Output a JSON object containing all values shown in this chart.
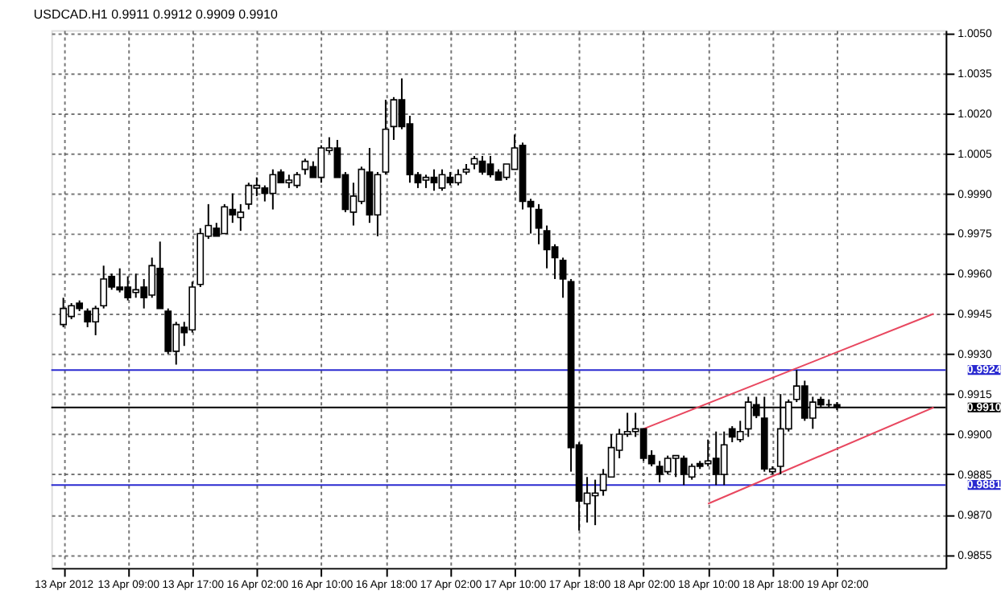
{
  "chart_data": {
    "type": "candlestick",
    "title": "USDCAD.H1 0.9911 0.9912 0.9909 0.9910",
    "categories": [
      "13 Apr 2012",
      null,
      null,
      null,
      null,
      null,
      null,
      null,
      "13 Apr 09:00",
      null,
      null,
      null,
      null,
      null,
      null,
      null,
      "13 Apr 17:00",
      null,
      null,
      null,
      null,
      null,
      null,
      null,
      "16 Apr 02:00",
      null,
      null,
      null,
      null,
      null,
      null,
      null,
      "16 Apr 10:00",
      null,
      null,
      null,
      null,
      null,
      null,
      null,
      "16 Apr 18:00",
      null,
      null,
      null,
      null,
      null,
      null,
      null,
      "17 Apr 02:00",
      null,
      null,
      null,
      null,
      null,
      null,
      null,
      "17 Apr 10:00",
      null,
      null,
      null,
      null,
      null,
      null,
      null,
      "17 Apr 18:00",
      null,
      null,
      null,
      null,
      null,
      null,
      null,
      "18 Apr 02:00",
      null,
      null,
      null,
      null,
      null,
      null,
      null,
      "18 Apr 10:00",
      null,
      null,
      null,
      null,
      null,
      null,
      null,
      "18 Apr 18:00",
      null,
      null,
      null,
      null,
      null,
      null,
      null,
      "19 Apr 02:00",
      null,
      null,
      null,
      null,
      null,
      null,
      null,
      null,
      null,
      null,
      null,
      null
    ],
    "ohlc": [
      [
        0.9941,
        0.9951,
        0.994,
        0.9947
      ],
      [
        0.9944,
        0.9949,
        0.9943,
        0.9948
      ],
      [
        0.9949,
        0.995,
        0.9946,
        0.9947
      ],
      [
        0.9946,
        0.9947,
        0.994,
        0.9942
      ],
      [
        0.9942,
        0.9948,
        0.9937,
        0.9947
      ],
      [
        0.9948,
        0.9963,
        0.9947,
        0.9958
      ],
      [
        0.9959,
        0.996,
        0.9954,
        0.9955
      ],
      [
        0.9955,
        0.9962,
        0.9953,
        0.9954
      ],
      [
        0.9955,
        0.9959,
        0.995,
        0.9951
      ],
      [
        0.9953,
        0.996,
        0.9951,
        0.9954
      ],
      [
        0.9955,
        0.9958,
        0.9947,
        0.9951
      ],
      [
        0.9952,
        0.9966,
        0.9951,
        0.9963
      ],
      [
        0.9962,
        0.9972,
        0.9947,
        0.9947
      ],
      [
        0.9946,
        0.9947,
        0.993,
        0.9931
      ],
      [
        0.9931,
        0.9942,
        0.9926,
        0.9941
      ],
      [
        0.994,
        0.9942,
        0.9933,
        0.9938
      ],
      [
        0.9939,
        0.9957,
        0.9938,
        0.9955
      ],
      [
        0.9956,
        0.9977,
        0.9955,
        0.9975
      ],
      [
        0.9974,
        0.9986,
        0.9973,
        0.9978
      ],
      [
        0.9977,
        0.9979,
        0.9974,
        0.9974
      ],
      [
        0.9975,
        0.9986,
        0.9975,
        0.9985
      ],
      [
        0.9984,
        0.999,
        0.9979,
        0.9982
      ],
      [
        0.9981,
        0.9986,
        0.9976,
        0.9983
      ],
      [
        0.9986,
        0.9994,
        0.9984,
        0.9993
      ],
      [
        0.9992,
        0.9996,
        0.9989,
        0.9993
      ],
      [
        0.9992,
        0.9993,
        0.9987,
        0.999
      ],
      [
        0.999,
        0.9999,
        0.9984,
        0.9997
      ],
      [
        0.9998,
        0.9999,
        0.9994,
        0.9994
      ],
      [
        0.9994,
        0.9997,
        0.9992,
        0.9995
      ],
      [
        0.9993,
        0.9998,
        0.9992,
        0.9997
      ],
      [
        0.9999,
        1.0003,
        0.9997,
        1.0002
      ],
      [
        1.0,
        1.0002,
        0.9996,
        0.9996
      ],
      [
        0.9996,
        1.0008,
        0.9994,
        1.0007
      ],
      [
        1.0006,
        1.0011,
        1.0005,
        1.0007
      ],
      [
        1.0007,
        1.001,
        0.9996,
        0.9996
      ],
      [
        0.9997,
        0.9998,
        0.9983,
        0.9984
      ],
      [
        0.9983,
        0.9994,
        0.9978,
        0.9989
      ],
      [
        0.9987,
        1.0,
        0.9986,
        0.9999
      ],
      [
        0.9998,
        1.0007,
        0.9979,
        0.9982
      ],
      [
        0.9982,
        0.9998,
        0.9974,
        0.9997
      ],
      [
        0.9998,
        1.0025,
        0.9997,
        1.0014
      ],
      [
        1.0015,
        1.0026,
        1.001,
        1.0025
      ],
      [
        1.0025,
        1.0033,
        1.0014,
        1.0015
      ],
      [
        1.0016,
        1.0019,
        0.9994,
        0.9997
      ],
      [
        0.9997,
        0.9998,
        0.9992,
        0.9994
      ],
      [
        0.9995,
        0.9997,
        0.9992,
        0.9996
      ],
      [
        0.9996,
        0.9999,
        0.9991,
        0.9994
      ],
      [
        0.9992,
        0.9999,
        0.9991,
        0.9997
      ],
      [
        0.9996,
        0.9998,
        0.9993,
        0.9994
      ],
      [
        0.9994,
        0.9999,
        0.9993,
        0.9997
      ],
      [
        0.9998,
        1.0001,
        0.9997,
        0.9999
      ],
      [
        1.0001,
        1.0004,
        0.9999,
        1.0003
      ],
      [
        1.0002,
        1.0004,
        0.9997,
        0.9998
      ],
      [
        1.0001,
        1.0004,
        0.9996,
        0.9997
      ],
      [
        0.9998,
        0.9999,
        0.9995,
        0.9995
      ],
      [
        0.9996,
        1.0001,
        0.9995,
        1.0001
      ],
      [
        0.9999,
        1.0012,
        0.9999,
        1.0007
      ],
      [
        1.0008,
        1.0009,
        0.9984,
        0.9987
      ],
      [
        0.9987,
        0.9988,
        0.9975,
        0.9985
      ],
      [
        0.9984,
        0.9986,
        0.9971,
        0.9977
      ],
      [
        0.9976,
        0.9978,
        0.9962,
        0.9969
      ],
      [
        0.997,
        0.9971,
        0.9958,
        0.9966
      ],
      [
        0.9965,
        0.9966,
        0.9951,
        0.9958
      ],
      [
        0.9957,
        0.9958,
        0.9886,
        0.9895
      ],
      [
        0.9896,
        0.9897,
        0.9864,
        0.9875
      ],
      [
        0.9874,
        0.9884,
        0.9867,
        0.9878
      ],
      [
        0.9877,
        0.9883,
        0.9866,
        0.9878
      ],
      [
        0.9879,
        0.9887,
        0.9877,
        0.9885
      ],
      [
        0.9884,
        0.99,
        0.9884,
        0.9895
      ],
      [
        0.9894,
        0.9902,
        0.9891,
        0.99
      ],
      [
        0.99,
        0.9908,
        0.9899,
        0.9901
      ],
      [
        0.9901,
        0.9908,
        0.9899,
        0.9902
      ],
      [
        0.9902,
        0.9902,
        0.989,
        0.9891
      ],
      [
        0.9892,
        0.9894,
        0.9888,
        0.9889
      ],
      [
        0.9888,
        0.989,
        0.9882,
        0.9885
      ],
      [
        0.9886,
        0.9892,
        0.9885,
        0.9891
      ],
      [
        0.9891,
        0.9892,
        0.9884,
        0.9892
      ],
      [
        0.9891,
        0.9892,
        0.9881,
        0.9885
      ],
      [
        0.9884,
        0.9889,
        0.9883,
        0.9888
      ],
      [
        0.9889,
        0.989,
        0.9887,
        0.9888
      ],
      [
        0.9889,
        0.9898,
        0.9888,
        0.989
      ],
      [
        0.9891,
        0.9901,
        0.9881,
        0.9885
      ],
      [
        0.9885,
        0.9901,
        0.9881,
        0.9896
      ],
      [
        0.9902,
        0.9903,
        0.9897,
        0.9899
      ],
      [
        0.9898,
        0.9905,
        0.9897,
        0.9901
      ],
      [
        0.9902,
        0.9914,
        0.9899,
        0.9912
      ],
      [
        0.9911,
        0.9914,
        0.9906,
        0.9907
      ],
      [
        0.9906,
        0.9914,
        0.9886,
        0.9887
      ],
      [
        0.9886,
        0.9888,
        0.9885,
        0.9887
      ],
      [
        0.9888,
        0.9915,
        0.9885,
        0.9902
      ],
      [
        0.9902,
        0.9913,
        0.9901,
        0.9912
      ],
      [
        0.9913,
        0.9924,
        0.9912,
        0.9918
      ],
      [
        0.9918,
        0.992,
        0.9905,
        0.9906
      ],
      [
        0.9906,
        0.9914,
        0.9902,
        0.9912
      ],
      [
        0.9913,
        0.9914,
        0.991,
        0.9911
      ],
      [
        0.9911,
        0.9913,
        0.991,
        0.9911
      ],
      [
        0.9911,
        0.9912,
        0.9909,
        0.991
      ],
      null,
      null,
      null,
      null,
      null,
      null,
      null,
      null,
      null,
      null,
      null,
      null
    ],
    "series": [
      {
        "type": "line",
        "color": "#e8475f",
        "values": [
          null,
          null,
          null,
          null,
          null,
          null,
          null,
          null,
          null,
          null,
          null,
          null,
          null,
          null,
          null,
          null,
          null,
          null,
          null,
          null,
          null,
          null,
          null,
          null,
          null,
          null,
          null,
          null,
          null,
          null,
          null,
          null,
          null,
          null,
          null,
          null,
          null,
          null,
          null,
          null,
          null,
          null,
          null,
          null,
          null,
          null,
          null,
          null,
          null,
          null,
          null,
          null,
          null,
          null,
          null,
          null,
          null,
          null,
          null,
          null,
          null,
          null,
          null,
          null,
          null,
          null,
          null,
          null,
          null,
          null,
          null,
          null,
          0.9902,
          null,
          null,
          null,
          null,
          null,
          null,
          null,
          null,
          null,
          null,
          null,
          null,
          null,
          null,
          null,
          null,
          null,
          null,
          null,
          null,
          null,
          null,
          null,
          null,
          null,
          null,
          null,
          null,
          null,
          null,
          null,
          null,
          null,
          null,
          null,
          0.9945
        ]
      },
      {
        "type": "line",
        "color": "#e8475f",
        "values": [
          null,
          null,
          null,
          null,
          null,
          null,
          null,
          null,
          null,
          null,
          null,
          null,
          null,
          null,
          null,
          null,
          null,
          null,
          null,
          null,
          null,
          null,
          null,
          null,
          null,
          null,
          null,
          null,
          null,
          null,
          null,
          null,
          null,
          null,
          null,
          null,
          null,
          null,
          null,
          null,
          null,
          null,
          null,
          null,
          null,
          null,
          null,
          null,
          null,
          null,
          null,
          null,
          null,
          null,
          null,
          null,
          null,
          null,
          null,
          null,
          null,
          null,
          null,
          null,
          null,
          null,
          null,
          null,
          null,
          null,
          null,
          null,
          null,
          null,
          null,
          null,
          null,
          null,
          null,
          null,
          0.9874,
          null,
          null,
          null,
          null,
          null,
          null,
          null,
          null,
          null,
          null,
          null,
          null,
          null,
          null,
          null,
          null,
          null,
          null,
          null,
          null,
          null,
          null,
          null,
          null,
          null,
          null,
          null,
          0.991
        ]
      }
    ],
    "ref_lines": [
      {
        "axis": "y",
        "value": 0.9924,
        "label": "0.9924",
        "color": "#2a2ad0"
      },
      {
        "axis": "y",
        "value": 0.9881,
        "label": "0.9881",
        "color": "#2a2ad0"
      },
      {
        "axis": "y",
        "value": 0.991,
        "label": "0.9910",
        "color": "#000000"
      }
    ],
    "ylim": [
      0.985,
      1.0051
    ],
    "yticks": [
      {
        "value": 0.9855,
        "label": "0.9855"
      },
      {
        "value": 0.987,
        "label": "0.9870"
      },
      {
        "value": 0.9885,
        "label": "0.9885"
      },
      {
        "value": 0.99,
        "label": "0.9900"
      },
      {
        "value": 0.9915,
        "label": "0.9915"
      },
      {
        "value": 0.993,
        "label": "0.9930"
      },
      {
        "value": 0.9945,
        "label": "0.9945"
      },
      {
        "value": 0.996,
        "label": "0.9960"
      },
      {
        "value": 0.9975,
        "label": "0.9975"
      },
      {
        "value": 0.999,
        "label": "0.9990"
      },
      {
        "value": 1.0005,
        "label": "1.0005"
      },
      {
        "value": 1.002,
        "label": "1.0020"
      },
      {
        "value": 1.0035,
        "label": "1.0035"
      },
      {
        "value": 1.005,
        "label": "1.0050"
      }
    ],
    "grid": true
  }
}
